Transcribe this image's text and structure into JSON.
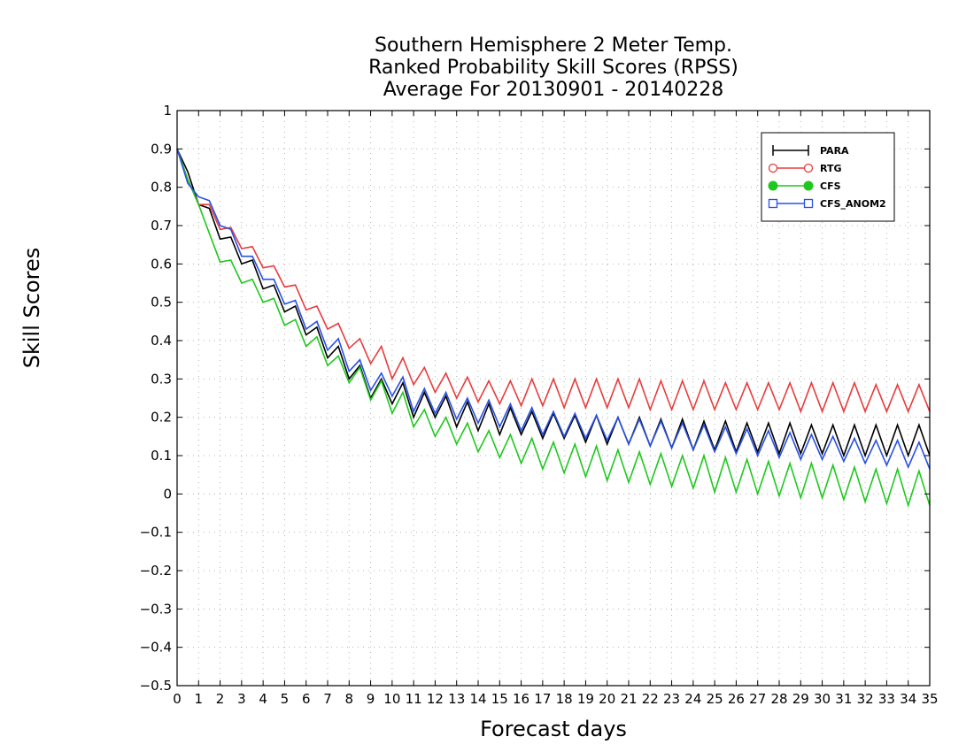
{
  "chart_data": {
    "type": "line",
    "title": [
      "Southern Hemisphere 2 Meter Temp.",
      "Ranked Probability Skill Scores (RPSS)",
      "Average For 20130901 - 20140228"
    ],
    "xlabel": "Forecast days",
    "ylabel": "Skill Scores",
    "xlim": [
      0,
      35
    ],
    "ylim": [
      -0.5,
      1
    ],
    "x_ticks": [
      0,
      1,
      2,
      3,
      4,
      5,
      6,
      7,
      8,
      9,
      10,
      11,
      12,
      13,
      14,
      15,
      16,
      17,
      18,
      19,
      20,
      21,
      22,
      23,
      24,
      25,
      26,
      27,
      28,
      29,
      30,
      31,
      32,
      33,
      34,
      35
    ],
    "y_ticks": [
      -0.5,
      -0.4,
      -0.3,
      -0.2,
      -0.1,
      0,
      0.1,
      0.2,
      0.3,
      0.4,
      0.5,
      0.6,
      0.7,
      0.8,
      0.9,
      1
    ],
    "y_tick_labels": [
      "−0.5",
      "−0.4",
      "−0.3",
      "−0.2",
      "−0.1",
      "0",
      "0.1",
      "0.2",
      "0.3",
      "0.4",
      "0.5",
      "0.6",
      "0.7",
      "0.8",
      "0.9",
      "1"
    ],
    "grid": true,
    "legend_position": "top-right",
    "x": [
      0,
      0.5,
      1,
      1.5,
      2,
      2.5,
      3,
      3.5,
      4,
      4.5,
      5,
      5.5,
      6,
      6.5,
      7,
      7.5,
      8,
      8.5,
      9,
      9.5,
      10,
      10.5,
      11,
      11.5,
      12,
      12.5,
      13,
      13.5,
      14,
      14.5,
      15,
      15.5,
      16,
      16.5,
      17,
      17.5,
      18,
      18.5,
      19,
      19.5,
      20,
      20.5,
      21,
      21.5,
      22,
      22.5,
      23,
      23.5,
      24,
      24.5,
      25,
      25.5,
      26,
      26.5,
      27,
      27.5,
      28,
      28.5,
      29,
      29.5,
      30,
      30.5,
      31,
      31.5,
      32,
      32.5,
      33,
      33.5,
      34,
      34.5,
      35
    ],
    "series": [
      {
        "name": "PARA",
        "color": "#000000",
        "marker": "cross",
        "values": [
          0.9,
          0.84,
          0.755,
          0.745,
          0.665,
          0.67,
          0.6,
          0.61,
          0.535,
          0.545,
          0.475,
          0.49,
          0.415,
          0.435,
          0.355,
          0.385,
          0.3,
          0.335,
          0.25,
          0.3,
          0.235,
          0.29,
          0.2,
          0.265,
          0.2,
          0.255,
          0.175,
          0.24,
          0.165,
          0.235,
          0.155,
          0.225,
          0.155,
          0.215,
          0.145,
          0.21,
          0.145,
          0.205,
          0.135,
          0.205,
          0.13,
          0.2,
          0.13,
          0.2,
          0.125,
          0.195,
          0.12,
          0.195,
          0.115,
          0.19,
          0.115,
          0.19,
          0.11,
          0.185,
          0.11,
          0.185,
          0.105,
          0.185,
          0.105,
          0.18,
          0.105,
          0.18,
          0.1,
          0.18,
          0.1,
          0.18,
          0.1,
          0.18,
          0.1,
          0.18,
          0.1
        ]
      },
      {
        "name": "RTG",
        "color": "#e83c3c",
        "marker": "open-circle",
        "values": [
          0.9,
          0.82,
          0.755,
          0.755,
          0.69,
          0.695,
          0.64,
          0.645,
          0.59,
          0.595,
          0.54,
          0.545,
          0.48,
          0.49,
          0.43,
          0.445,
          0.38,
          0.405,
          0.34,
          0.385,
          0.3,
          0.355,
          0.285,
          0.33,
          0.265,
          0.315,
          0.25,
          0.305,
          0.24,
          0.295,
          0.235,
          0.295,
          0.23,
          0.3,
          0.23,
          0.3,
          0.225,
          0.3,
          0.225,
          0.3,
          0.225,
          0.3,
          0.225,
          0.3,
          0.22,
          0.295,
          0.22,
          0.295,
          0.22,
          0.295,
          0.22,
          0.29,
          0.22,
          0.29,
          0.22,
          0.29,
          0.22,
          0.29,
          0.215,
          0.29,
          0.215,
          0.29,
          0.215,
          0.29,
          0.215,
          0.285,
          0.215,
          0.285,
          0.215,
          0.285,
          0.215
        ]
      },
      {
        "name": "CFS",
        "color": "#1ec81e",
        "marker": "filled-circle",
        "values": [
          0.9,
          0.82,
          0.755,
          0.68,
          0.605,
          0.61,
          0.55,
          0.56,
          0.5,
          0.51,
          0.44,
          0.455,
          0.385,
          0.41,
          0.335,
          0.36,
          0.29,
          0.33,
          0.245,
          0.295,
          0.21,
          0.265,
          0.175,
          0.22,
          0.15,
          0.2,
          0.13,
          0.185,
          0.11,
          0.165,
          0.095,
          0.155,
          0.08,
          0.145,
          0.065,
          0.135,
          0.055,
          0.13,
          0.045,
          0.125,
          0.035,
          0.115,
          0.03,
          0.11,
          0.025,
          0.105,
          0.02,
          0.1,
          0.015,
          0.1,
          0.005,
          0.095,
          0.005,
          0.09,
          0.0,
          0.085,
          -0.005,
          0.08,
          -0.01,
          0.08,
          -0.01,
          0.075,
          -0.015,
          0.07,
          -0.02,
          0.065,
          -0.025,
          0.065,
          -0.03,
          0.06,
          -0.03
        ]
      },
      {
        "name": "CFS_ANOM2",
        "color": "#2850e6",
        "marker": "open-square",
        "values": [
          0.9,
          0.81,
          0.775,
          0.765,
          0.7,
          0.69,
          0.62,
          0.62,
          0.56,
          0.56,
          0.495,
          0.505,
          0.43,
          0.45,
          0.375,
          0.405,
          0.32,
          0.35,
          0.27,
          0.315,
          0.255,
          0.305,
          0.215,
          0.275,
          0.21,
          0.265,
          0.195,
          0.25,
          0.185,
          0.245,
          0.175,
          0.235,
          0.165,
          0.225,
          0.155,
          0.215,
          0.15,
          0.21,
          0.145,
          0.205,
          0.14,
          0.2,
          0.13,
          0.195,
          0.125,
          0.19,
          0.12,
          0.185,
          0.115,
          0.18,
          0.11,
          0.175,
          0.105,
          0.17,
          0.1,
          0.165,
          0.095,
          0.16,
          0.09,
          0.155,
          0.09,
          0.15,
          0.085,
          0.145,
          0.08,
          0.14,
          0.075,
          0.14,
          0.07,
          0.135,
          0.065
        ]
      }
    ]
  }
}
